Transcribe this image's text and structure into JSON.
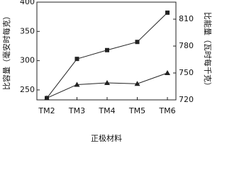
{
  "chart_data": {
    "type": "line",
    "categories": [
      "TM2",
      "TM3",
      "TM4",
      "TM5",
      "TM6"
    ],
    "xlabel": "正极材料",
    "ylabel": "比容量（毫安时每克）",
    "y2label": "比能量（瓦时每千克）",
    "ylim": [
      233,
      400
    ],
    "yticks": [
      250,
      300,
      350,
      400
    ],
    "y2lim": [
      720,
      829
    ],
    "y2ticks": [
      720,
      750,
      780,
      810
    ],
    "series": [
      {
        "color": "#222222",
        "marker": "square",
        "values": [
          236,
          303,
          318,
          332,
          382
        ]
      },
      {
        "color": "#222222",
        "marker": "triangle",
        "axis": "y2",
        "values": [
          722,
          737,
          739,
          738,
          750
        ]
      }
    ]
  }
}
